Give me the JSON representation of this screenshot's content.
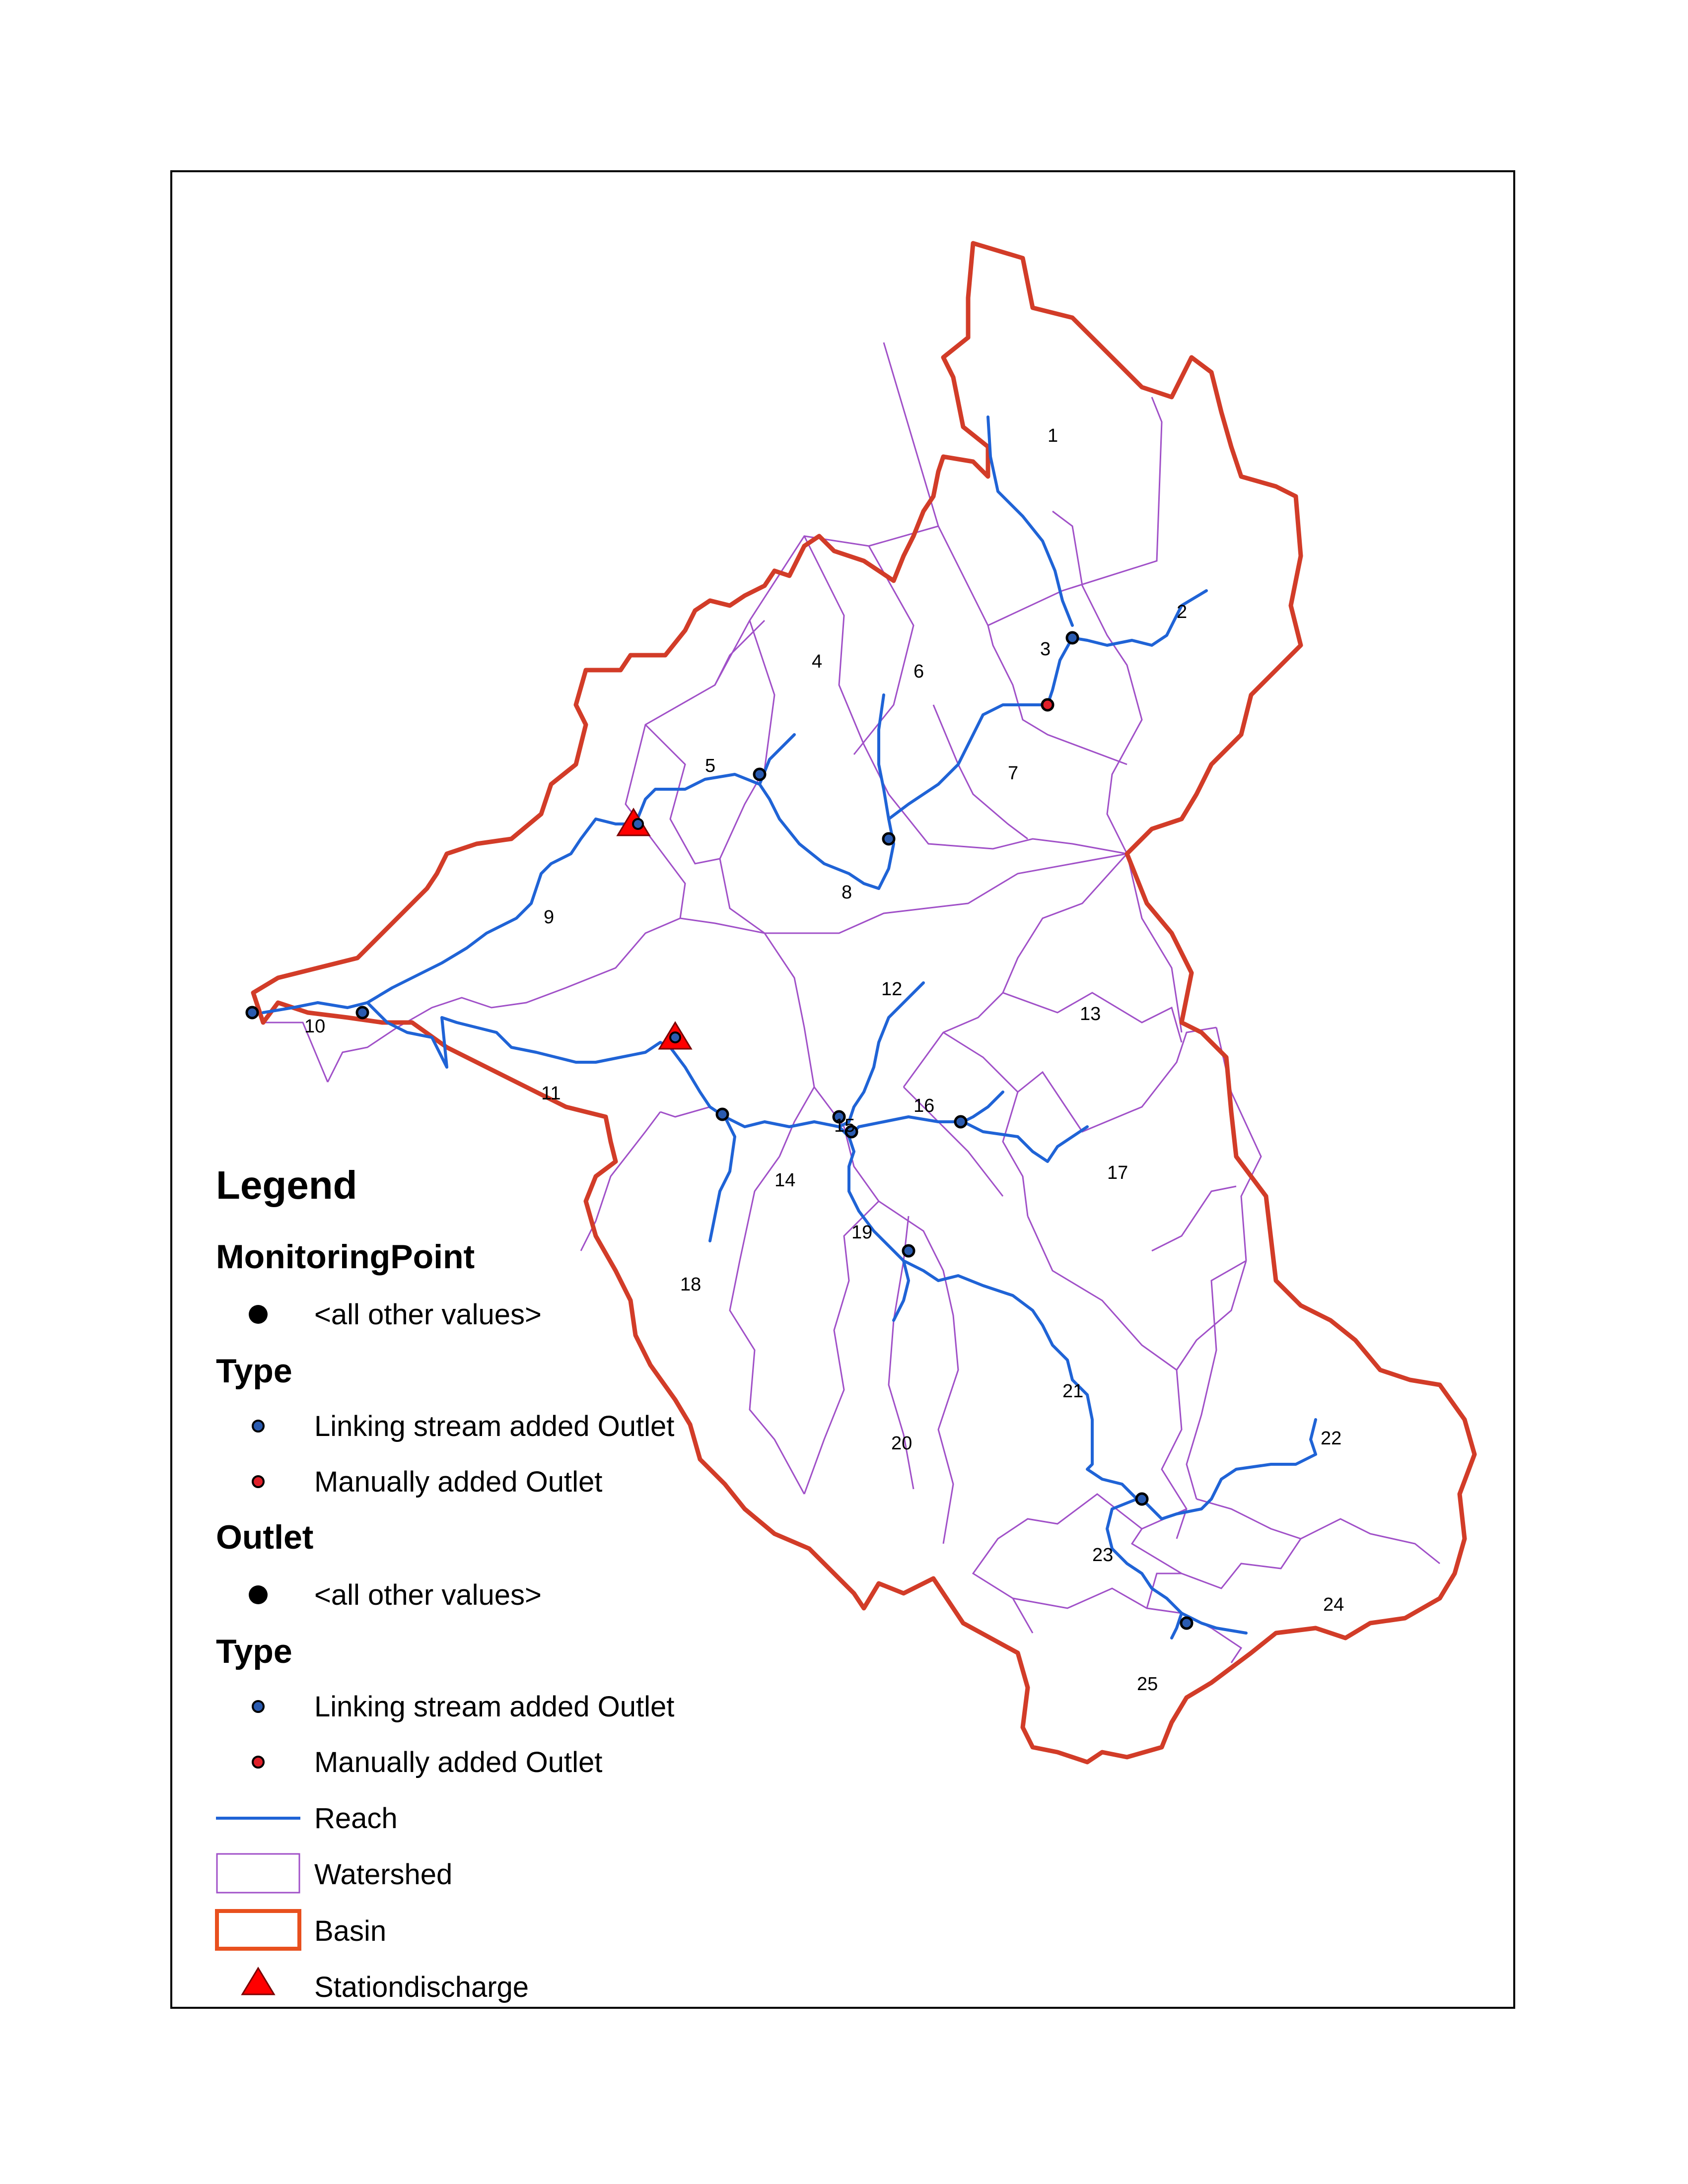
{
  "map": {
    "subbasin_labels": [
      "1",
      "2",
      "3",
      "4",
      "5",
      "6",
      "7",
      "8",
      "9",
      "10",
      "11",
      "12",
      "13",
      "14",
      "15",
      "16",
      "17",
      "18",
      "19",
      "20",
      "21",
      "22",
      "23",
      "24",
      "25"
    ]
  },
  "colors": {
    "reach": "#1f63d6",
    "watershed": "#a050c8",
    "basin": "#d23c28",
    "basin_legend": "#e8501e",
    "linking_outlet": "#2a5bb0",
    "manual_outlet": "#e0202a",
    "monitoring_point": "#000000",
    "station": "#ff0000"
  },
  "legend": {
    "title": "Legend",
    "monitoring_point": {
      "header": "MonitoringPoint",
      "all_other": "<all other values>",
      "type_header": "Type",
      "linking": "Linking stream added Outlet",
      "manual": "Manually added Outlet"
    },
    "outlet": {
      "header": "Outlet",
      "all_other": "<all other values>",
      "type_header": "Type",
      "linking": "Linking stream added Outlet",
      "manual": "Manually added Outlet"
    },
    "reach": "Reach",
    "watershed": "Watershed",
    "basin": "Basin",
    "station": "Stationdischarge"
  }
}
